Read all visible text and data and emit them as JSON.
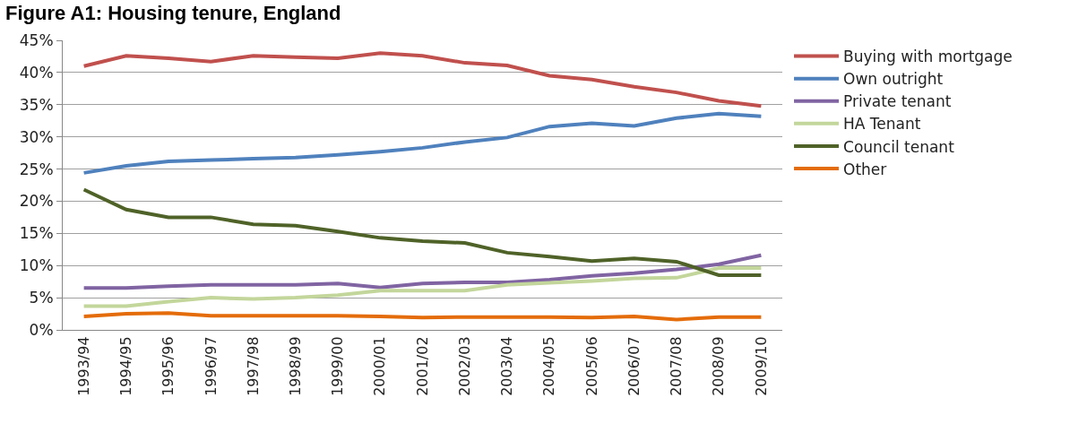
{
  "chart_data": {
    "type": "line",
    "title": "Figure A1: Housing tenure, England",
    "categories": [
      "1993/94",
      "1994/95",
      "1995/96",
      "1996/97",
      "1997/98",
      "1998/99",
      "1999/00",
      "2000/01",
      "2001/02",
      "2002/03",
      "2003/04",
      "2004/05",
      "2005/06",
      "2006/07",
      "2007/08",
      "2008/09",
      "2009/10"
    ],
    "series": [
      {
        "name": "Buying with mortgage",
        "color": "#c0504d",
        "values": [
          41.0,
          42.6,
          42.2,
          41.7,
          42.6,
          42.4,
          42.2,
          43.0,
          42.6,
          41.5,
          41.1,
          39.5,
          38.9,
          37.8,
          36.9,
          35.6,
          34.8
        ]
      },
      {
        "name": "Own outright",
        "color": "#4f81bd",
        "values": [
          24.4,
          25.5,
          26.2,
          26.4,
          26.6,
          26.8,
          27.2,
          27.7,
          28.3,
          29.2,
          29.9,
          31.6,
          32.1,
          31.7,
          32.9,
          33.6,
          33.2
        ]
      },
      {
        "name": "Private tenant",
        "color": "#8064a2",
        "values": [
          6.5,
          6.5,
          6.8,
          7.0,
          7.0,
          7.0,
          7.2,
          6.6,
          7.2,
          7.4,
          7.4,
          7.8,
          8.4,
          8.8,
          9.4,
          10.2,
          11.6
        ]
      },
      {
        "name": "HA Tenant",
        "color": "#c3d69b",
        "values": [
          3.7,
          3.7,
          4.4,
          5.0,
          4.8,
          5.0,
          5.4,
          6.1,
          6.1,
          6.1,
          7.0,
          7.3,
          7.6,
          8.0,
          8.1,
          9.6,
          9.6
        ]
      },
      {
        "name": "Council tenant",
        "color": "#4f6228",
        "values": [
          21.8,
          18.7,
          17.5,
          17.5,
          16.4,
          16.2,
          15.3,
          14.3,
          13.8,
          13.5,
          12.0,
          11.4,
          10.7,
          11.1,
          10.6,
          8.5,
          8.5
        ]
      },
      {
        "name": "Other",
        "color": "#e46c0a",
        "values": [
          2.1,
          2.5,
          2.6,
          2.2,
          2.2,
          2.2,
          2.2,
          2.1,
          1.9,
          2.0,
          2.0,
          2.0,
          1.9,
          2.1,
          1.6,
          2.0,
          2.0
        ]
      }
    ],
    "ylim": [
      0,
      45
    ],
    "yticks": [
      {
        "value": 0,
        "label": "0%"
      },
      {
        "value": 5,
        "label": "5%"
      },
      {
        "value": 10,
        "label": "10%"
      },
      {
        "value": 15,
        "label": "15%"
      },
      {
        "value": 20,
        "label": "20%"
      },
      {
        "value": 25,
        "label": "25%"
      },
      {
        "value": 30,
        "label": "30%"
      },
      {
        "value": 35,
        "label": "35%"
      },
      {
        "value": 40,
        "label": "40%"
      },
      {
        "value": 45,
        "label": "45%"
      }
    ],
    "grid": "y",
    "legend": "right",
    "marker": "none",
    "line_style": "solid"
  }
}
